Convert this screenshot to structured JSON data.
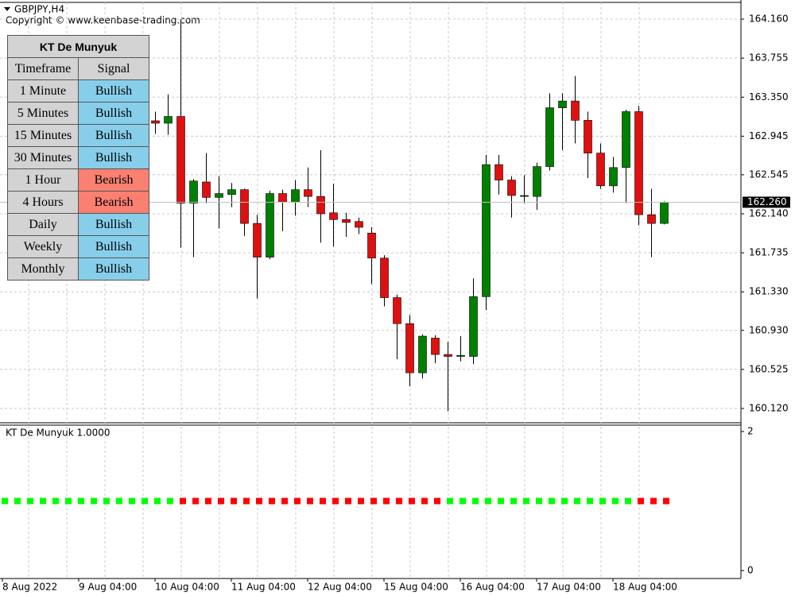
{
  "header": {
    "symbol": "GBPJPY,H4",
    "copyright": "Copyright © www.keenbase-trading.com"
  },
  "table": {
    "title": "KT De Munyuk",
    "columns": [
      "Timeframe",
      "Signal"
    ],
    "rows": [
      [
        "1 Minute",
        "Bullish"
      ],
      [
        "5 Minutes",
        "Bullish"
      ],
      [
        "15 Minutes",
        "Bullish"
      ],
      [
        "30 Minutes",
        "Bullish"
      ],
      [
        "1 Hour",
        "Bearish"
      ],
      [
        "4 Hours",
        "Bearish"
      ],
      [
        "Daily",
        "Bullish"
      ],
      [
        "Weekly",
        "Bullish"
      ],
      [
        "Monthly",
        "Bullish"
      ]
    ],
    "signal_colors": [
      "#87ceeb",
      "#87ceeb",
      "#87ceeb",
      "#87ceeb",
      "#fa8072",
      "#fa8072",
      "#87ceeb",
      "#87ceeb",
      "#87ceeb"
    ]
  },
  "chart_data": [
    {
      "type": "candlestick",
      "up_color": "#008000",
      "down_color": "#e01010",
      "grid": true,
      "categories": [
        "8 Aug 2022",
        null,
        null,
        null,
        null,
        null,
        "9 Aug 04:00",
        null,
        null,
        null,
        null,
        null,
        "10 Aug 04:00",
        null,
        null,
        null,
        null,
        null,
        "11 Aug 04:00",
        null,
        null,
        null,
        null,
        null,
        "12 Aug 04:00",
        null,
        null,
        null,
        null,
        null,
        "15 Aug 04:00",
        null,
        null,
        null,
        null,
        null,
        "16 Aug 04:00",
        null,
        null,
        null,
        null,
        null,
        "17 Aug 04:00",
        null,
        null,
        null,
        null,
        null,
        "18 Aug 04:00",
        null,
        null,
        null,
        null
      ],
      "open": [
        null,
        null,
        null,
        null,
        null,
        null,
        null,
        null,
        null,
        null,
        null,
        null,
        163.105,
        163.08,
        163.15,
        162.25,
        162.47,
        162.31,
        162.34,
        162.39,
        162.04,
        161.69,
        162.35,
        162.26,
        162.39,
        162.32,
        162.15,
        162.08,
        162.06,
        161.94,
        161.68,
        161.27,
        161.0,
        160.49,
        160.85,
        160.68,
        160.66,
        160.66,
        161.28,
        162.65,
        162.49,
        162.32,
        162.32,
        162.63,
        163.24,
        163.31,
        163.11,
        162.77,
        162.43,
        162.62,
        163.2,
        162.13,
        162.04
      ],
      "high": [
        null,
        null,
        null,
        null,
        null,
        null,
        null,
        null,
        null,
        null,
        null,
        null,
        163.2,
        163.38,
        164.15,
        162.5,
        162.77,
        162.53,
        162.46,
        162.4,
        162.13,
        162.38,
        162.39,
        162.49,
        162.62,
        162.8,
        162.45,
        162.15,
        162.1,
        162.0,
        161.71,
        161.3,
        161.09,
        160.89,
        160.88,
        160.81,
        160.87,
        161.47,
        162.75,
        162.75,
        162.53,
        162.54,
        162.67,
        163.39,
        163.39,
        163.57,
        163.2,
        162.87,
        162.73,
        163.22,
        163.26,
        162.4,
        162.27
      ],
      "low": [
        null,
        null,
        null,
        null,
        null,
        null,
        null,
        null,
        null,
        null,
        null,
        null,
        162.97,
        162.96,
        161.79,
        161.69,
        162.25,
        161.99,
        162.21,
        161.91,
        161.26,
        161.67,
        161.96,
        162.12,
        162.21,
        161.84,
        161.8,
        161.9,
        161.93,
        161.41,
        161.18,
        160.63,
        160.35,
        160.43,
        160.59,
        160.09,
        160.61,
        160.58,
        161.14,
        162.34,
        162.1,
        162.25,
        162.18,
        162.59,
        162.8,
        162.87,
        162.51,
        162.4,
        162.36,
        162.25,
        162.02,
        161.69,
        162.03
      ],
      "close": [
        null,
        null,
        null,
        null,
        null,
        null,
        null,
        null,
        null,
        null,
        null,
        null,
        163.08,
        163.15,
        162.25,
        162.48,
        162.31,
        162.35,
        162.39,
        162.04,
        161.69,
        162.35,
        162.26,
        162.39,
        162.32,
        162.14,
        162.08,
        162.05,
        162.0,
        161.68,
        161.27,
        161.0,
        160.49,
        160.87,
        160.68,
        160.66,
        160.67,
        161.28,
        162.65,
        162.49,
        162.33,
        162.33,
        162.63,
        163.24,
        163.31,
        163.11,
        162.77,
        162.43,
        162.62,
        163.2,
        162.13,
        162.04,
        162.26
      ],
      "ylim": [
        159.988,
        164.317
      ],
      "yticks": [
        {
          "value": 160.12,
          "label": "160.120"
        },
        160.525,
        {
          "value": 160.93,
          "label": "160.930"
        },
        {
          "value": 161.33,
          "label": "161.330"
        },
        161.735,
        {
          "value": 162.14,
          "label": "162.140"
        },
        162.545,
        162.945,
        {
          "value": 163.35,
          "label": "163.350"
        },
        163.755,
        {
          "value": 164.16,
          "label": "164.160"
        }
      ],
      "current_price": {
        "value": 162.26,
        "label": "162.260"
      }
    },
    {
      "type": "dots",
      "title": "KT De Munyuk 1.0000",
      "ylim": [
        0,
        2
      ],
      "yticks": [
        0,
        2
      ],
      "values": [
        1,
        1,
        1,
        1,
        1,
        1,
        1,
        1,
        1,
        1,
        1,
        1,
        1,
        1,
        1,
        1,
        1,
        1,
        1,
        1,
        1,
        1,
        1,
        1,
        1,
        1,
        1,
        1,
        1,
        1,
        1,
        1,
        1,
        1,
        1,
        1,
        1,
        1,
        1,
        1,
        1,
        1,
        1,
        1,
        1,
        1,
        1,
        1,
        1,
        1,
        1,
        1,
        1
      ],
      "colors": [
        "#00ff00",
        "#00ff00",
        "#00ff00",
        "#00ff00",
        "#00ff00",
        "#00ff00",
        "#00ff00",
        "#00ff00",
        "#00ff00",
        "#00ff00",
        "#00ff00",
        "#00ff00",
        "#00ff00",
        "#00ff00",
        "#ff0000",
        "#ff0000",
        "#ff0000",
        "#ff0000",
        "#ff0000",
        "#ff0000",
        "#ff0000",
        "#ff0000",
        "#ff0000",
        "#ff0000",
        "#ff0000",
        "#ff0000",
        "#ff0000",
        "#ff0000",
        "#ff0000",
        "#ff0000",
        "#ff0000",
        "#ff0000",
        "#ff0000",
        "#ff0000",
        "#ff0000",
        "#00ff00",
        "#00ff00",
        "#00ff00",
        "#00ff00",
        "#00ff00",
        "#00ff00",
        "#00ff00",
        "#00ff00",
        "#00ff00",
        "#00ff00",
        "#00ff00",
        "#00ff00",
        "#00ff00",
        "#00ff00",
        "#00ff00",
        "#ff0000",
        "#ff0000",
        "#ff0000"
      ]
    }
  ]
}
